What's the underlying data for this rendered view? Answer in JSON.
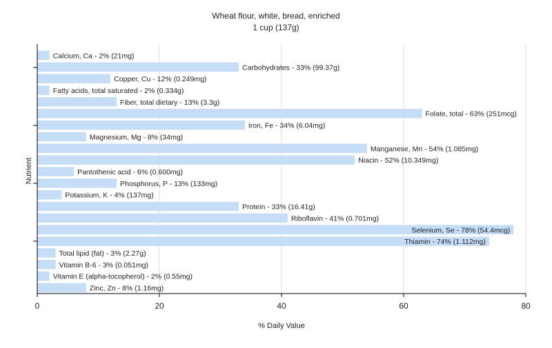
{
  "colors": {
    "bar": "#c6ddf8",
    "grid": "#dddddd",
    "axis": "#000000",
    "text": "#222222"
  },
  "chart_data": {
    "type": "bar",
    "orientation": "horizontal",
    "title": "Wheat flour, white, bread, enriched",
    "subtitle": "1 cup (137g)",
    "xlabel": "% Daily Value",
    "ylabel": "Nutrient",
    "xlim": [
      0,
      80
    ],
    "xticks": [
      "0",
      "20",
      "40",
      "60",
      "80"
    ],
    "grid": true,
    "legend": "none",
    "categories": [
      "Calcium, Ca",
      "Carbohydrates",
      "Copper, Cu",
      "Fatty acids, total saturated",
      "Fiber, total dietary",
      "Folate, total",
      "Iron, Fe",
      "Magnesium, Mg",
      "Manganese, Mn",
      "Niacin",
      "Pantothenic acid",
      "Phosphorus, P",
      "Potassium, K",
      "Protein",
      "Riboflavin",
      "Selenium, Se",
      "Thiamin",
      "Total lipid (fat)",
      "Vitamin B-6",
      "Vitamin E (alpha-tocopherol)",
      "Zinc, Zn"
    ],
    "values": [
      2,
      33,
      12,
      2,
      13,
      63,
      34,
      8,
      54,
      52,
      6,
      13,
      4,
      33,
      41,
      78,
      74,
      3,
      3,
      2,
      8
    ],
    "labels": [
      "Calcium, Ca - 2% (21mg)",
      "Carbohydrates - 33% (99.37g)",
      "Copper, Cu - 12% (0.249mg)",
      "Fatty acids, total saturated - 2% (0.334g)",
      "Fiber, total dietary - 13% (3.3g)",
      "Folate, total - 63% (251mcg)",
      "Iron, Fe - 34% (6.04mg)",
      "Magnesium, Mg - 8% (34mg)",
      "Manganese, Mn - 54% (1.085mg)",
      "Niacin - 52% (10.349mg)",
      "Pantothenic acid - 6% (0.600mg)",
      "Phosphorus, P - 13% (133mg)",
      "Potassium, K - 4% (137mg)",
      "Protein - 33% (16.41g)",
      "Riboflavin - 41% (0.701mg)",
      "Selenium, Se - 78% (54.4mcg)",
      "Thiamin - 74% (1.112mg)",
      "Total lipid (fat) - 3% (2.27g)",
      "Vitamin B-6 - 3% (0.051mg)",
      "Vitamin E (alpha-tocopherol) - 2% (0.55mg)",
      "Zinc, Zn - 8% (1.16mg)"
    ]
  }
}
